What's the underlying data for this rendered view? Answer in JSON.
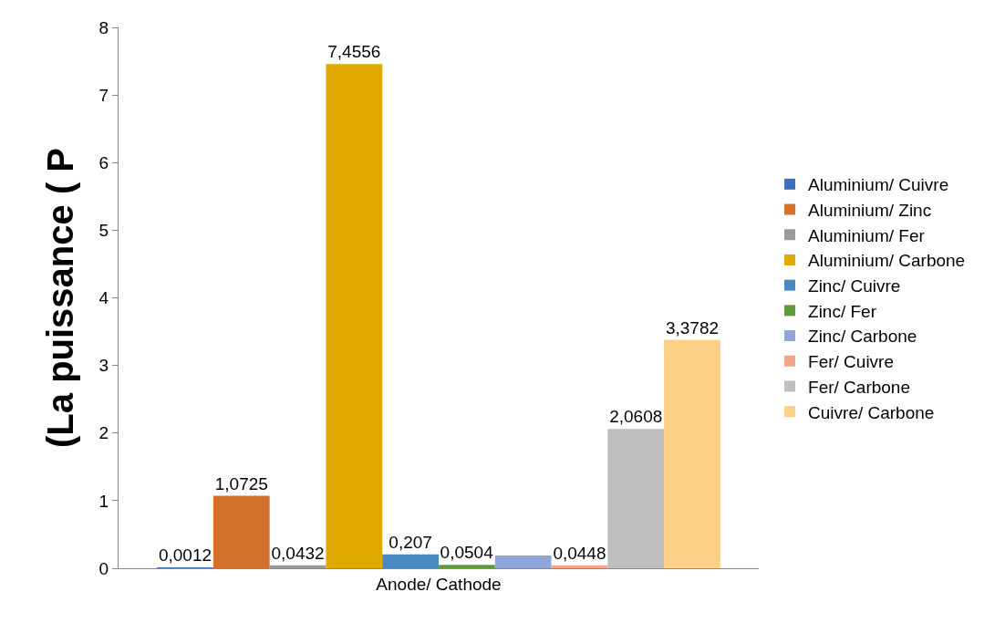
{
  "chart_data": {
    "type": "bar",
    "ylabel": "(La puissance ( P",
    "categories": [
      "Anode/ Cathode"
    ],
    "ylim": [
      0,
      8
    ],
    "yticks": [
      0,
      1,
      2,
      3,
      4,
      5,
      6,
      7,
      8
    ],
    "legend": "right",
    "series": [
      {
        "name": "Aluminium/ Cuivre",
        "color": "#3f6fba",
        "values": [
          0.0012
        ],
        "value_labels": [
          "0,0012"
        ]
      },
      {
        "name": "Aluminium/ Zinc",
        "color": "#d2702c",
        "values": [
          1.0725
        ],
        "value_labels": [
          "1,0725"
        ]
      },
      {
        "name": "Aluminium/ Fer",
        "color": "#9a9a9a",
        "values": [
          0.0432
        ],
        "value_labels": [
          "0,0432"
        ]
      },
      {
        "name": "Aluminium/ Carbone",
        "color": "#e0a800",
        "values": [
          7.4556
        ],
        "value_labels": [
          "7,4556"
        ]
      },
      {
        "name": "Zinc/ Cuivre",
        "color": "#4a88c2",
        "values": [
          0.207
        ],
        "value_labels": [
          "0,207"
        ]
      },
      {
        "name": "Zinc/ Fer",
        "color": "#5f9a3c",
        "values": [
          0.0504
        ],
        "value_labels": [
          "0,0504"
        ]
      },
      {
        "name": "Zinc/ Carbone",
        "color": "#8ea6da",
        "values": [
          0.19
        ],
        "value_labels": [
          null
        ]
      },
      {
        "name": "Fer/ Cuivre",
        "color": "#f2a587",
        "values": [
          0.0448
        ],
        "value_labels": [
          "0,0448"
        ]
      },
      {
        "name": "Fer/ Carbone",
        "color": "#bfbfbf",
        "values": [
          2.0608
        ],
        "value_labels": [
          "2,0608"
        ]
      },
      {
        "name": "Cuivre/ Carbone",
        "color": "#fdd087",
        "values": [
          3.3782
        ],
        "value_labels": [
          "3,3782"
        ]
      }
    ]
  }
}
